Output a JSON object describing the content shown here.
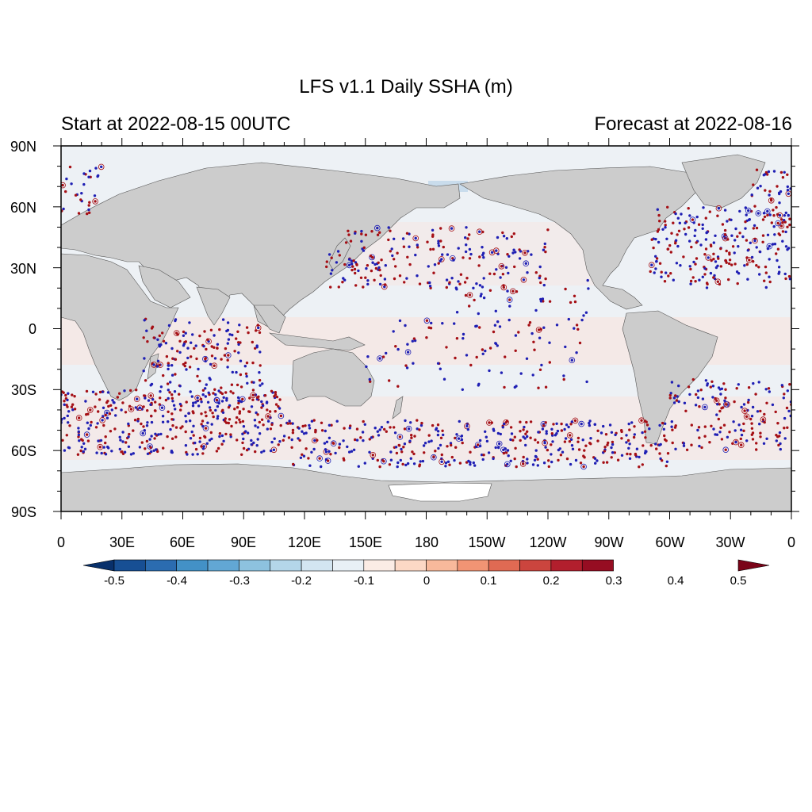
{
  "title": "LFS v1.1 Daily SSHA (m)",
  "subtitle_left": "Start at 2022-08-15 00UTC",
  "subtitle_right": "Forecast at 2022-08-16",
  "map": {
    "lat_ticks": [
      "90N",
      "60N",
      "30N",
      "0",
      "30S",
      "60S",
      "90S"
    ],
    "lon_ticks": [
      "0",
      "30E",
      "60E",
      "90E",
      "120E",
      "150E",
      "180",
      "150W",
      "120W",
      "90W",
      "60W",
      "30W",
      "0"
    ],
    "land_color": "#cccccc",
    "ocean_color": "#edf1f5"
  },
  "colorbar": {
    "labels": [
      "-0.5",
      "-0.4",
      "-0.3",
      "-0.2",
      "-0.1",
      "0",
      "0.1",
      "0.2",
      "0.3",
      "0.4",
      "0.5"
    ],
    "colors": [
      "#08306b",
      "#174f94",
      "#2b6cb0",
      "#4391c6",
      "#62a7d4",
      "#8dc2df",
      "#b4d6e9",
      "#d3e5f1",
      "#e8f0f6",
      "#fbece5",
      "#fcd8c5",
      "#f8b99b",
      "#f19474",
      "#e06a53",
      "#cb453e",
      "#b21f2d",
      "#960d22",
      "#7a0418"
    ]
  },
  "chart_data": {
    "type": "map",
    "variable": "Sea Surface Height Anomaly",
    "units": "m",
    "value_range": [
      -0.5,
      0.5
    ],
    "lat_range": [
      -90,
      90
    ],
    "lon_range": [
      0,
      360
    ],
    "projection": "cylindrical equidistant, centered on 180",
    "observation_dots": {
      "negative_color": "#1f1fb4",
      "positive_color": "#a50f15"
    }
  }
}
